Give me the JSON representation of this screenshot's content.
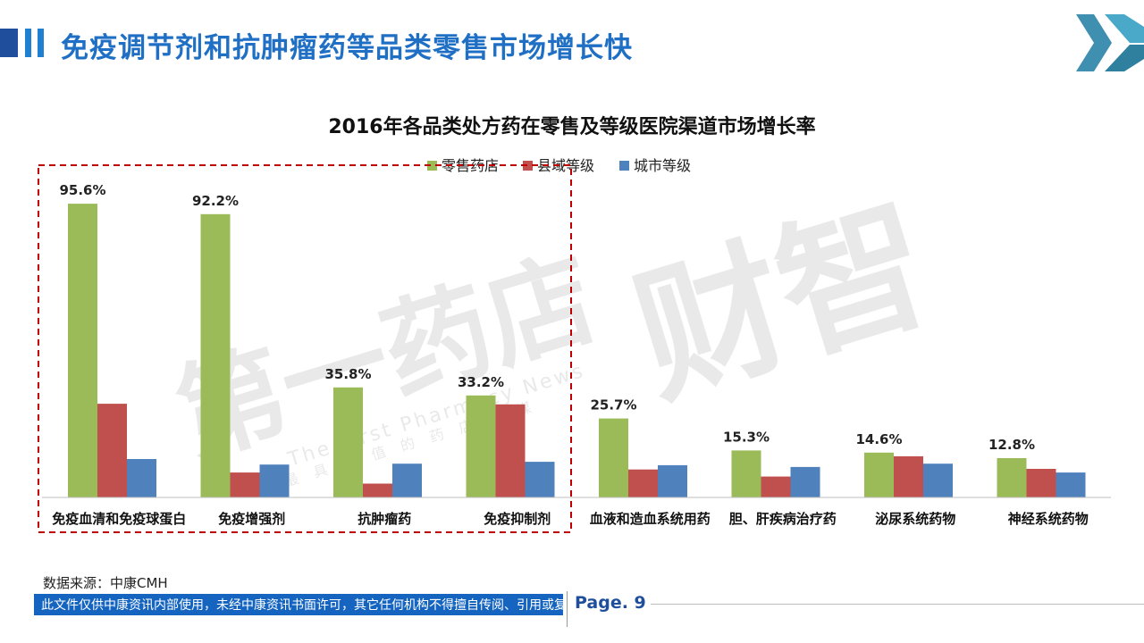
{
  "header": {
    "title": "免疫调节剂和抗肿瘤药等品类零售市场增长快"
  },
  "chart_data": {
    "type": "bar",
    "title": "2016年各品类处方药在零售及等级医院渠道市场增长率",
    "categories": [
      "免疫血清和免疫球蛋白",
      "免疫增强剂",
      "抗肿瘤药",
      "免疫抑制剂",
      "血液和造血系统用药",
      "胆、肝疾病治疗药",
      "泌尿系统药物",
      "神经系统药物"
    ],
    "series": [
      {
        "name": "零售药店",
        "color": "#9bbb59",
        "values": [
          95.6,
          92.2,
          35.8,
          33.2,
          25.7,
          15.3,
          14.6,
          12.8
        ]
      },
      {
        "name": "县域等级",
        "color": "#c0504d",
        "values": [
          30.5,
          8.1,
          4.5,
          30.3,
          9.1,
          6.8,
          13.4,
          9.3
        ]
      },
      {
        "name": "城市等级",
        "color": "#4f81bd",
        "values": [
          12.5,
          10.7,
          11.0,
          11.6,
          10.5,
          9.9,
          11.0,
          8.1
        ]
      }
    ],
    "data_labels": [
      "95.6%",
      "92.2%",
      "35.8%",
      "33.2%",
      "25.7%",
      "15.3%",
      "14.6%",
      "12.8%"
    ],
    "ylim": [
      0,
      100
    ],
    "legend": "top-center",
    "grid": false,
    "highlight_categories": [
      0,
      1,
      2,
      3
    ]
  },
  "watermark": {
    "cn_left": "第一药店",
    "cn_right": "财智",
    "en": "The First Pharmacy News",
    "cn_small": "最具价值的药店传媒"
  },
  "footer": {
    "source": "数据来源：中康CMH",
    "notice": "此文件仅供中康资讯内部使用，未经中康资讯书面许可，其它任何机构不得擅自传阅、引用或复制",
    "page": "Page. 9"
  }
}
